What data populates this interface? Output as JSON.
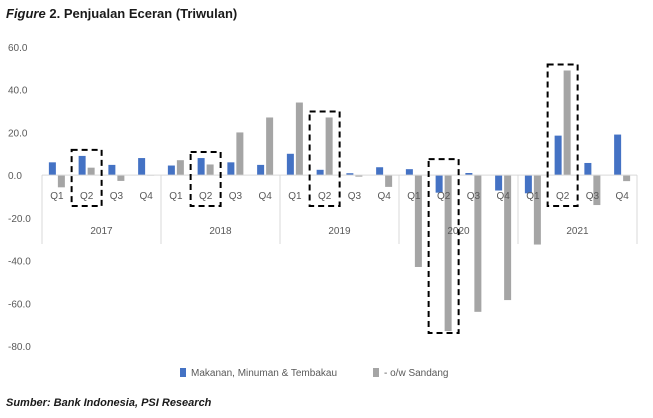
{
  "title": {
    "prefix": "Figure",
    "number": "2.",
    "text": "Penjualan Eceran (Triwulan)"
  },
  "source": "Sumber: Bank Indonesia, PSI Research",
  "colors": {
    "series1": "#4472c4",
    "series2": "#a5a5a5",
    "axis": "#d9d9d9",
    "text": "#595959"
  },
  "chart_data": {
    "type": "bar",
    "years": [
      "2017",
      "2018",
      "2019",
      "2020",
      "2021"
    ],
    "quarters": [
      "Q1",
      "Q2",
      "Q3",
      "Q4"
    ],
    "categories": [
      "Q1",
      "Q2",
      "Q3",
      "Q4",
      "Q1",
      "Q2",
      "Q3",
      "Q4",
      "Q1",
      "Q2",
      "Q3",
      "Q4",
      "Q1",
      "Q2",
      "Q3",
      "Q4",
      "Q1",
      "Q2",
      "Q3",
      "Q4"
    ],
    "series": [
      {
        "name": "Makanan, Minuman & Tembakau",
        "values": [
          6,
          9,
          4.8,
          8,
          4.5,
          8,
          6,
          4.8,
          10,
          2.5,
          0.9,
          3.7,
          2.8,
          -8.2,
          1,
          -7.2,
          -8.5,
          18.5,
          5.7,
          19
        ]
      },
      {
        "name": "- o/w Sandang",
        "values": [
          -5.7,
          3.5,
          -2.7,
          0,
          7,
          5,
          20,
          27,
          34,
          27,
          -0.7,
          -5.5,
          -43,
          -73,
          -64,
          -58.5,
          -32.5,
          49,
          -14,
          -2.8
        ]
      }
    ],
    "y_ticks": [
      "60.0",
      "40.0",
      "20.0",
      "0.0",
      "-20.0",
      "-40.0",
      "-60.0",
      "-80.0"
    ],
    "ylim": [
      -80,
      60
    ],
    "highlighted": [
      "2017 Q2",
      "2018 Q2",
      "2019 Q2",
      "2020 Q2",
      "2021 Q2"
    ],
    "legend_position": "bottom",
    "grid": false
  }
}
